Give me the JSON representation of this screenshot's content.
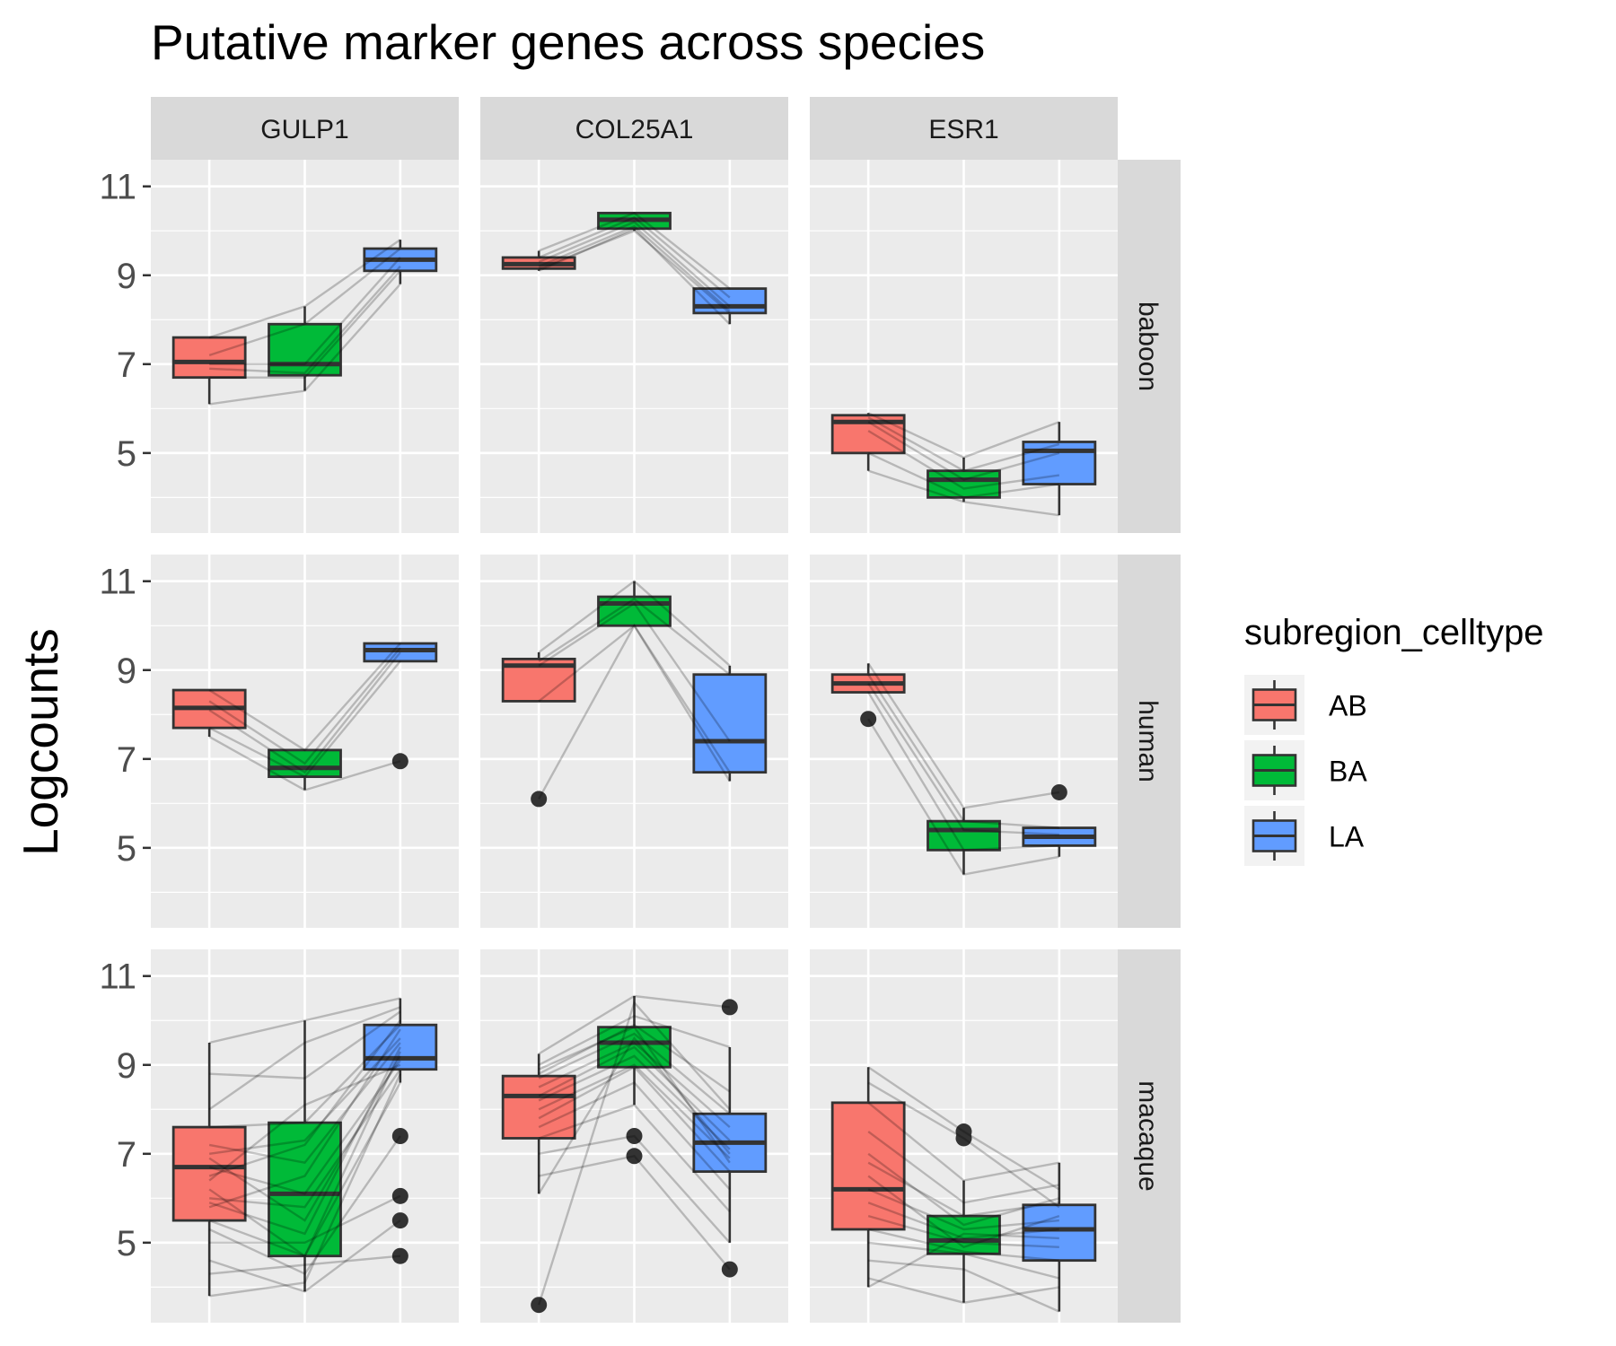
{
  "chart_data": {
    "type": "boxplot",
    "title": "Putative marker genes across species",
    "ylabel": "Logcounts",
    "xlabel": "",
    "ylim": [
      3.2,
      11.6
    ],
    "yticks": [
      5,
      7,
      9,
      11
    ],
    "grid": true,
    "legend": {
      "title": "subregion_celltype",
      "position": "right",
      "items": [
        {
          "label": "AB",
          "color": "#F8766D"
        },
        {
          "label": "BA",
          "color": "#00BA38"
        },
        {
          "label": "LA",
          "color": "#619CFF"
        }
      ]
    },
    "categories": [
      "AB",
      "BA",
      "LA"
    ],
    "colors": {
      "AB": "#F8766D",
      "BA": "#00BA38",
      "LA": "#619CFF"
    },
    "facet_cols": [
      "GULP1",
      "COL25A1",
      "ESR1"
    ],
    "facet_rows": [
      "baboon",
      "human",
      "macaque"
    ],
    "panels": [
      {
        "row": "baboon",
        "col": "GULP1",
        "boxes": [
          {
            "group": "AB",
            "whisker_low": 6.1,
            "q1": 6.7,
            "median": 7.05,
            "q3": 7.6,
            "whisker_high": 7.6,
            "outliers": []
          },
          {
            "group": "BA",
            "whisker_low": 6.4,
            "q1": 6.75,
            "median": 7.0,
            "q3": 7.9,
            "whisker_high": 8.3,
            "outliers": []
          },
          {
            "group": "LA",
            "whisker_low": 8.8,
            "q1": 9.1,
            "median": 9.35,
            "q3": 9.6,
            "whisker_high": 9.8,
            "outliers": []
          }
        ],
        "lines": [
          [
            7.6,
            8.3,
            9.8
          ],
          [
            7.2,
            7.9,
            9.6
          ],
          [
            7.0,
            7.0,
            9.4
          ],
          [
            6.9,
            6.8,
            9.2
          ],
          [
            6.7,
            6.7,
            9.1
          ],
          [
            6.1,
            6.4,
            8.8
          ]
        ]
      },
      {
        "row": "baboon",
        "col": "COL25A1",
        "boxes": [
          {
            "group": "AB",
            "whisker_low": 9.1,
            "q1": 9.15,
            "median": 9.25,
            "q3": 9.4,
            "whisker_high": 9.55,
            "outliers": []
          },
          {
            "group": "BA",
            "whisker_low": 10.0,
            "q1": 10.05,
            "median": 10.25,
            "q3": 10.4,
            "whisker_high": 10.4,
            "outliers": []
          },
          {
            "group": "LA",
            "whisker_low": 7.9,
            "q1": 8.15,
            "median": 8.3,
            "q3": 8.7,
            "whisker_high": 8.7,
            "outliers": []
          }
        ],
        "lines": [
          [
            9.55,
            10.4,
            8.7
          ],
          [
            9.4,
            10.3,
            8.5
          ],
          [
            9.3,
            10.2,
            8.3
          ],
          [
            9.2,
            10.1,
            8.2
          ],
          [
            9.1,
            10.05,
            7.9
          ],
          [
            9.15,
            10.0,
            8.15
          ]
        ]
      },
      {
        "row": "baboon",
        "col": "ESR1",
        "boxes": [
          {
            "group": "AB",
            "whisker_low": 4.6,
            "q1": 5.0,
            "median": 5.7,
            "q3": 5.85,
            "whisker_high": 5.9,
            "outliers": []
          },
          {
            "group": "BA",
            "whisker_low": 3.9,
            "q1": 4.0,
            "median": 4.4,
            "q3": 4.6,
            "whisker_high": 4.9,
            "outliers": []
          },
          {
            "group": "LA",
            "whisker_low": 3.6,
            "q1": 4.3,
            "median": 5.05,
            "q3": 5.25,
            "whisker_high": 5.7,
            "outliers": []
          }
        ],
        "lines": [
          [
            5.9,
            4.9,
            5.7
          ],
          [
            5.8,
            4.6,
            5.2
          ],
          [
            5.7,
            4.4,
            5.0
          ],
          [
            5.5,
            4.2,
            4.5
          ],
          [
            5.0,
            4.0,
            4.3
          ],
          [
            4.6,
            3.9,
            3.6
          ]
        ]
      },
      {
        "row": "human",
        "col": "GULP1",
        "boxes": [
          {
            "group": "AB",
            "whisker_low": 7.5,
            "q1": 7.7,
            "median": 8.15,
            "q3": 8.55,
            "whisker_high": 8.55,
            "outliers": []
          },
          {
            "group": "BA",
            "whisker_low": 6.3,
            "q1": 6.6,
            "median": 6.8,
            "q3": 7.2,
            "whisker_high": 7.2,
            "outliers": []
          },
          {
            "group": "LA",
            "whisker_low": 9.2,
            "q1": 9.2,
            "median": 9.45,
            "q3": 9.6,
            "whisker_high": 9.6,
            "outliers": [
              6.95
            ]
          }
        ],
        "lines": [
          [
            8.55,
            7.2,
            9.6
          ],
          [
            8.3,
            6.9,
            9.5
          ],
          [
            8.1,
            6.7,
            9.4
          ],
          [
            7.7,
            6.6,
            9.2
          ],
          [
            7.5,
            6.3,
            6.95
          ]
        ]
      },
      {
        "row": "human",
        "col": "COL25A1",
        "boxes": [
          {
            "group": "AB",
            "whisker_low": 8.3,
            "q1": 8.3,
            "median": 9.1,
            "q3": 9.25,
            "whisker_high": 9.4,
            "outliers": [
              6.1
            ]
          },
          {
            "group": "BA",
            "whisker_low": 10.0,
            "q1": 10.0,
            "median": 10.5,
            "q3": 10.65,
            "whisker_high": 11.0,
            "outliers": []
          },
          {
            "group": "LA",
            "whisker_low": 6.5,
            "q1": 6.7,
            "median": 7.4,
            "q3": 8.9,
            "whisker_high": 9.1,
            "outliers": []
          }
        ],
        "lines": [
          [
            9.4,
            11.0,
            9.1
          ],
          [
            9.2,
            10.6,
            8.9
          ],
          [
            9.1,
            10.5,
            7.4
          ],
          [
            8.3,
            10.0,
            6.7
          ],
          [
            6.1,
            10.0,
            6.5
          ]
        ]
      },
      {
        "row": "human",
        "col": "ESR1",
        "boxes": [
          {
            "group": "AB",
            "whisker_low": 8.5,
            "q1": 8.5,
            "median": 8.7,
            "q3": 8.9,
            "whisker_high": 9.15,
            "outliers": [
              7.9
            ]
          },
          {
            "group": "BA",
            "whisker_low": 4.4,
            "q1": 4.95,
            "median": 5.4,
            "q3": 5.6,
            "whisker_high": 5.9,
            "outliers": []
          },
          {
            "group": "LA",
            "whisker_low": 4.8,
            "q1": 5.05,
            "median": 5.25,
            "q3": 5.45,
            "whisker_high": 5.45,
            "outliers": [
              6.25
            ]
          }
        ],
        "lines": [
          [
            9.15,
            5.9,
            6.25
          ],
          [
            8.9,
            5.6,
            5.45
          ],
          [
            8.7,
            5.4,
            5.3
          ],
          [
            8.5,
            4.95,
            5.05
          ],
          [
            7.9,
            4.4,
            4.8
          ]
        ]
      },
      {
        "row": "macaque",
        "col": "GULP1",
        "boxes": [
          {
            "group": "AB",
            "whisker_low": 3.8,
            "q1": 5.5,
            "median": 6.7,
            "q3": 7.6,
            "whisker_high": 9.5,
            "outliers": []
          },
          {
            "group": "BA",
            "whisker_low": 3.9,
            "q1": 4.7,
            "median": 6.1,
            "q3": 7.7,
            "whisker_high": 10.0,
            "outliers": []
          },
          {
            "group": "LA",
            "whisker_low": 8.6,
            "q1": 8.9,
            "median": 9.15,
            "q3": 9.9,
            "whisker_high": 10.5,
            "outliers": [
              7.4,
              6.05,
              5.5,
              4.7
            ]
          }
        ],
        "lines": [
          [
            9.5,
            10.0,
            10.5
          ],
          [
            8.8,
            8.7,
            10.2
          ],
          [
            8.0,
            9.5,
            10.3
          ],
          [
            7.6,
            7.7,
            9.9
          ],
          [
            7.2,
            6.8,
            9.5
          ],
          [
            7.0,
            7.3,
            9.6
          ],
          [
            6.9,
            5.5,
            9.2
          ],
          [
            6.7,
            6.1,
            9.1
          ],
          [
            6.4,
            8.1,
            9.0
          ],
          [
            6.2,
            4.7,
            9.3
          ],
          [
            6.0,
            5.8,
            8.9
          ],
          [
            5.8,
            6.5,
            9.8
          ],
          [
            5.5,
            4.7,
            8.6
          ],
          [
            5.3,
            4.3,
            7.4
          ],
          [
            5.0,
            5.0,
            6.05
          ],
          [
            4.6,
            3.9,
            5.5
          ],
          [
            4.3,
            4.5,
            4.7
          ],
          [
            3.8,
            4.1,
            8.8
          ],
          [
            6.5,
            7.2,
            10.0
          ],
          [
            5.9,
            5.2,
            9.4
          ]
        ]
      },
      {
        "row": "macaque",
        "col": "COL25A1",
        "boxes": [
          {
            "group": "AB",
            "whisker_low": 6.1,
            "q1": 7.35,
            "median": 8.3,
            "q3": 8.75,
            "whisker_high": 9.25,
            "outliers": [
              3.6
            ]
          },
          {
            "group": "BA",
            "whisker_low": 8.1,
            "q1": 8.95,
            "median": 9.5,
            "q3": 9.85,
            "whisker_high": 10.55,
            "outliers": [
              7.4,
              6.95
            ]
          },
          {
            "group": "LA",
            "whisker_low": 5.0,
            "q1": 6.6,
            "median": 7.25,
            "q3": 7.9,
            "whisker_high": 9.4,
            "outliers": [
              10.3,
              4.4
            ]
          }
        ],
        "lines": [
          [
            9.25,
            10.55,
            10.3
          ],
          [
            9.0,
            10.1,
            9.4
          ],
          [
            8.8,
            9.9,
            8.4
          ],
          [
            8.7,
            9.7,
            7.9
          ],
          [
            8.5,
            9.5,
            7.6
          ],
          [
            8.3,
            9.4,
            7.3
          ],
          [
            8.2,
            9.2,
            7.1
          ],
          [
            8.0,
            9.0,
            6.9
          ],
          [
            7.8,
            8.95,
            6.6
          ],
          [
            7.6,
            8.6,
            6.2
          ],
          [
            7.35,
            8.1,
            5.7
          ],
          [
            7.0,
            7.4,
            5.0
          ],
          [
            6.5,
            6.95,
            4.4
          ],
          [
            6.1,
            9.6,
            7.0
          ],
          [
            3.6,
            10.4,
            8.0
          ],
          [
            8.9,
            9.85,
            6.8
          ]
        ]
      },
      {
        "row": "macaque",
        "col": "ESR1",
        "boxes": [
          {
            "group": "AB",
            "whisker_low": 4.0,
            "q1": 5.3,
            "median": 6.2,
            "q3": 8.15,
            "whisker_high": 8.95,
            "outliers": []
          },
          {
            "group": "BA",
            "whisker_low": 3.65,
            "q1": 4.75,
            "median": 5.05,
            "q3": 5.6,
            "whisker_high": 6.4,
            "outliers": [
              7.5,
              7.35
            ]
          },
          {
            "group": "LA",
            "whisker_low": 3.45,
            "q1": 4.6,
            "median": 5.3,
            "q3": 5.85,
            "whisker_high": 6.8,
            "outliers": []
          }
        ],
        "lines": [
          [
            8.95,
            7.5,
            6.2
          ],
          [
            8.6,
            7.35,
            5.8
          ],
          [
            8.15,
            6.4,
            6.8
          ],
          [
            7.5,
            5.9,
            6.3
          ],
          [
            6.8,
            5.6,
            5.9
          ],
          [
            6.2,
            5.3,
            5.5
          ],
          [
            5.9,
            5.1,
            5.3
          ],
          [
            5.6,
            5.0,
            4.9
          ],
          [
            5.3,
            4.8,
            4.6
          ],
          [
            5.0,
            4.75,
            4.2
          ],
          [
            4.6,
            4.4,
            3.45
          ],
          [
            4.2,
            3.65,
            4.0
          ],
          [
            4.0,
            5.2,
            5.1
          ],
          [
            6.5,
            4.9,
            5.6
          ],
          [
            7.0,
            5.4,
            6.0
          ]
        ]
      }
    ]
  }
}
